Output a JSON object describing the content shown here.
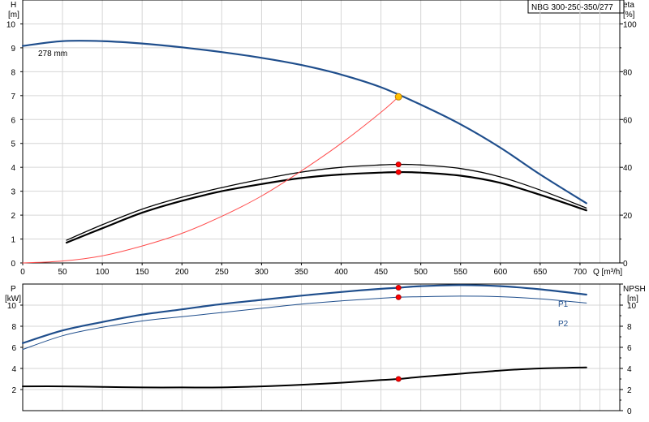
{
  "title": "NBG 300-250-350/277",
  "chart_data": [
    {
      "type": "line",
      "name_id": "head-efficiency",
      "xlabel": "Q [m³/h]",
      "ylabel_left": "H",
      "ylabel_left_unit": "[m]",
      "ylabel_right": "eta",
      "ylabel_right_unit": "[%]",
      "xlim": [
        0,
        750
      ],
      "ylim_left": [
        0,
        11
      ],
      "ylim_right": [
        0,
        110
      ],
      "x_ticks": [
        0,
        50,
        100,
        150,
        200,
        250,
        300,
        350,
        400,
        450,
        500,
        550,
        600,
        650,
        700
      ],
      "y_ticks_left": [
        0,
        1,
        2,
        3,
        4,
        5,
        6,
        7,
        8,
        9,
        10
      ],
      "y_ticks_right": [
        0,
        20,
        40,
        60,
        80,
        100
      ],
      "grid": true,
      "annotations": [
        {
          "text": "278 mm",
          "x": 38,
          "y": 9.5
        }
      ],
      "series": [
        {
          "axis": "left",
          "color": "#1f4e8c",
          "width": 2.2,
          "points": [
            [
              0,
              9.08
            ],
            [
              50,
              9.28
            ],
            [
              100,
              9.28
            ],
            [
              150,
              9.18
            ],
            [
              200,
              9.02
            ],
            [
              250,
              8.82
            ],
            [
              300,
              8.58
            ],
            [
              350,
              8.28
            ],
            [
              400,
              7.88
            ],
            [
              450,
              7.35
            ],
            [
              500,
              6.62
            ],
            [
              550,
              5.8
            ],
            [
              600,
              4.82
            ],
            [
              650,
              3.7
            ],
            [
              708,
              2.5
            ]
          ]
        },
        {
          "axis": "right",
          "color": "#000000",
          "width": 1.3,
          "points": [
            [
              55,
              9.5
            ],
            [
              100,
              16
            ],
            [
              150,
              22.5
            ],
            [
              200,
              27.5
            ],
            [
              250,
              31.5
            ],
            [
              300,
              35
            ],
            [
              350,
              38
            ],
            [
              400,
              40
            ],
            [
              450,
              41
            ],
            [
              472,
              41.2
            ],
            [
              500,
              41
            ],
            [
              550,
              39.5
            ],
            [
              600,
              36
            ],
            [
              650,
              30.5
            ],
            [
              708,
              23
            ]
          ]
        },
        {
          "axis": "right",
          "color": "#000000",
          "width": 2.2,
          "points": [
            [
              55,
              8.5
            ],
            [
              100,
              14.5
            ],
            [
              150,
              21
            ],
            [
              200,
              26
            ],
            [
              250,
              30
            ],
            [
              300,
              33
            ],
            [
              350,
              35.5
            ],
            [
              400,
              37
            ],
            [
              450,
              37.8
            ],
            [
              472,
              38
            ],
            [
              500,
              37.8
            ],
            [
              550,
              36.5
            ],
            [
              600,
              33.5
            ],
            [
              650,
              28.5
            ],
            [
              708,
              22
            ]
          ]
        },
        {
          "axis": "left",
          "color": "#ff4d4d",
          "width": 1,
          "points": [
            [
              0,
              0
            ],
            [
              50,
              0.08
            ],
            [
              100,
              0.3
            ],
            [
              150,
              0.71
            ],
            [
              200,
              1.24
            ],
            [
              250,
              1.95
            ],
            [
              300,
              2.8
            ],
            [
              350,
              3.85
            ],
            [
              400,
              5.0
            ],
            [
              450,
              6.3
            ],
            [
              472,
              6.95
            ]
          ]
        }
      ],
      "markers": [
        {
          "axis": "left",
          "x": 472,
          "y": 6.95,
          "color": "#ffc000",
          "stroke": "#c08000",
          "r": 4
        },
        {
          "axis": "right",
          "x": 472,
          "y": 41.2,
          "color": "#ff0000",
          "stroke": "#b00000",
          "r": 3
        },
        {
          "axis": "right",
          "x": 472,
          "y": 38,
          "color": "#ff0000",
          "stroke": "#b00000",
          "r": 3
        }
      ]
    },
    {
      "type": "line",
      "name_id": "power-npsh",
      "ylabel_left": "P",
      "ylabel_left_unit": "[kW]",
      "ylabel_right": "NPSH",
      "ylabel_right_unit": "[m]",
      "xlim": [
        0,
        750
      ],
      "ylim_left": [
        0,
        12
      ],
      "ylim_right": [
        0,
        12
      ],
      "y_ticks_left": [
        2,
        4,
        6,
        8,
        10
      ],
      "y_ticks_right": [
        0,
        2,
        4,
        6,
        8,
        10
      ],
      "grid": true,
      "series": [
        {
          "name": "P1",
          "axis": "left",
          "color": "#1f4e8c",
          "width": 2.2,
          "points": [
            [
              0,
              6.4
            ],
            [
              50,
              7.6
            ],
            [
              100,
              8.4
            ],
            [
              150,
              9.1
            ],
            [
              200,
              9.6
            ],
            [
              250,
              10.1
            ],
            [
              300,
              10.5
            ],
            [
              350,
              10.9
            ],
            [
              400,
              11.25
            ],
            [
              450,
              11.55
            ],
            [
              472,
              11.65
            ],
            [
              500,
              11.8
            ],
            [
              550,
              11.9
            ],
            [
              600,
              11.8
            ],
            [
              650,
              11.5
            ],
            [
              708,
              11
            ]
          ]
        },
        {
          "name": "P2",
          "axis": "left",
          "color": "#1f4e8c",
          "width": 1,
          "points": [
            [
              0,
              5.8
            ],
            [
              50,
              7.1
            ],
            [
              100,
              7.9
            ],
            [
              150,
              8.5
            ],
            [
              200,
              8.9
            ],
            [
              250,
              9.3
            ],
            [
              300,
              9.7
            ],
            [
              350,
              10.1
            ],
            [
              400,
              10.4
            ],
            [
              450,
              10.65
            ],
            [
              472,
              10.75
            ],
            [
              500,
              10.8
            ],
            [
              550,
              10.85
            ],
            [
              600,
              10.8
            ],
            [
              650,
              10.6
            ],
            [
              708,
              10.2
            ]
          ]
        },
        {
          "axis": "right",
          "color": "#000000",
          "width": 2,
          "points": [
            [
              0,
              2.3
            ],
            [
              50,
              2.3
            ],
            [
              100,
              2.25
            ],
            [
              150,
              2.2
            ],
            [
              200,
              2.2
            ],
            [
              250,
              2.2
            ],
            [
              300,
              2.3
            ],
            [
              350,
              2.45
            ],
            [
              400,
              2.65
            ],
            [
              450,
              2.9
            ],
            [
              472,
              3.0
            ],
            [
              500,
              3.2
            ],
            [
              550,
              3.5
            ],
            [
              600,
              3.8
            ],
            [
              650,
              4.0
            ],
            [
              708,
              4.1
            ]
          ]
        }
      ],
      "markers": [
        {
          "axis": "left",
          "x": 472,
          "y": 11.65,
          "color": "#ff0000",
          "stroke": "#b00000",
          "r": 3
        },
        {
          "axis": "left",
          "x": 472,
          "y": 10.75,
          "color": "#ff0000",
          "stroke": "#b00000",
          "r": 3
        },
        {
          "axis": "right",
          "x": 472,
          "y": 3.0,
          "color": "#ff0000",
          "stroke": "#b00000",
          "r": 3
        }
      ]
    }
  ]
}
